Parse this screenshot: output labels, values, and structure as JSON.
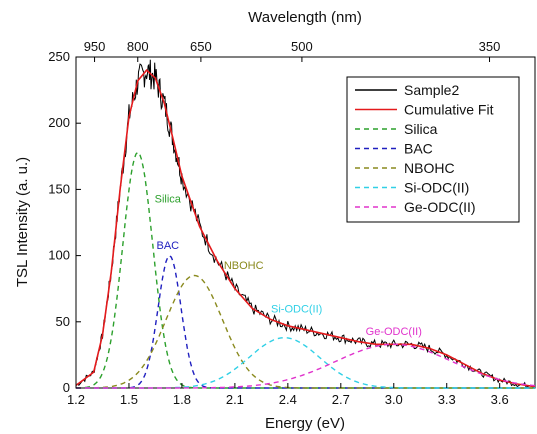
{
  "chart_data": {
    "type": "line",
    "xlabel": "Energy (eV)",
    "ylabel": "TSL Intensity (a. u.)",
    "top_xlabel": "Wavelength (nm)",
    "xlim": [
      1.2,
      3.8
    ],
    "ylim": [
      0,
      250
    ],
    "x_ticks": [
      "1.2",
      "1.5",
      "1.8",
      "2.1",
      "2.4",
      "2.7",
      "3.0",
      "3.3",
      "3.6"
    ],
    "y_ticks": [
      "0",
      "50",
      "100",
      "150",
      "200",
      "250"
    ],
    "top_ticks": [
      "950",
      "800",
      "650",
      "500",
      "350"
    ],
    "legend_position": "top-right",
    "data_series": [
      {
        "name": "Sample2",
        "color": "#000000",
        "style": "solid",
        "x": [
          1.2,
          1.3,
          1.35,
          1.4,
          1.45,
          1.5,
          1.55,
          1.6,
          1.65,
          1.7,
          1.75,
          1.8,
          1.9,
          2.0,
          2.1,
          2.2,
          2.3,
          2.4,
          2.5,
          2.6,
          2.7,
          2.8,
          2.9,
          3.0,
          3.1,
          3.2,
          3.3,
          3.4,
          3.5,
          3.6,
          3.7,
          3.8
        ],
        "y": [
          2,
          12,
          40,
          88,
          150,
          205,
          232,
          240,
          234,
          215,
          188,
          160,
          122,
          96,
          75,
          60,
          52,
          47,
          44,
          41,
          38,
          35,
          33,
          33,
          33,
          30,
          25,
          18,
          11,
          6,
          3,
          1
        ]
      },
      {
        "name": "Cumulative Fit",
        "color": "#e41a1c",
        "style": "solid",
        "x": [
          1.2,
          1.3,
          1.35,
          1.4,
          1.45,
          1.5,
          1.55,
          1.6,
          1.65,
          1.7,
          1.75,
          1.8,
          1.9,
          2.0,
          2.1,
          2.2,
          2.3,
          2.4,
          2.5,
          2.6,
          2.7,
          2.8,
          2.9,
          3.0,
          3.1,
          3.2,
          3.3,
          3.4,
          3.5,
          3.6,
          3.7,
          3.8
        ],
        "y": [
          2,
          12,
          40,
          88,
          150,
          205,
          232,
          240,
          234,
          215,
          188,
          160,
          122,
          96,
          75,
          60,
          52,
          47,
          44,
          41,
          38,
          35,
          33,
          33,
          33,
          30,
          25,
          18,
          11,
          6,
          3,
          1
        ]
      },
      {
        "name": "Silica",
        "color": "#2ca02c",
        "style": "dashed",
        "center": 1.55,
        "peak": 178,
        "width": 0.085
      },
      {
        "name": "BAC",
        "color": "#1f1fbf",
        "style": "dashed",
        "center": 1.73,
        "peak": 100,
        "width": 0.065
      },
      {
        "name": "NBOHC",
        "color": "#8a8a1e",
        "style": "dashed",
        "center": 1.87,
        "peak": 85,
        "width": 0.16
      },
      {
        "name": "Si-ODC(II)",
        "color": "#30d0e6",
        "style": "dashed",
        "center": 2.38,
        "peak": 38,
        "width": 0.2
      },
      {
        "name": "Ge-ODC(II)",
        "color": "#e033cc",
        "style": "dashed",
        "center": 3.0,
        "peak": 33,
        "width": 0.33
      }
    ],
    "annotations": [
      {
        "text": "Silica",
        "x": 1.72,
        "y": 140,
        "color": "#2ca02c"
      },
      {
        "text": "BAC",
        "x": 1.72,
        "y": 105,
        "color": "#1f1fbf"
      },
      {
        "text": "NBOHC",
        "x": 2.15,
        "y": 90,
        "color": "#8a8a1e"
      },
      {
        "text": "Si-ODC(II)",
        "x": 2.45,
        "y": 57,
        "color": "#30d0e6"
      },
      {
        "text": "Ge-ODC(II)",
        "x": 3.0,
        "y": 40,
        "color": "#e033cc"
      }
    ]
  }
}
